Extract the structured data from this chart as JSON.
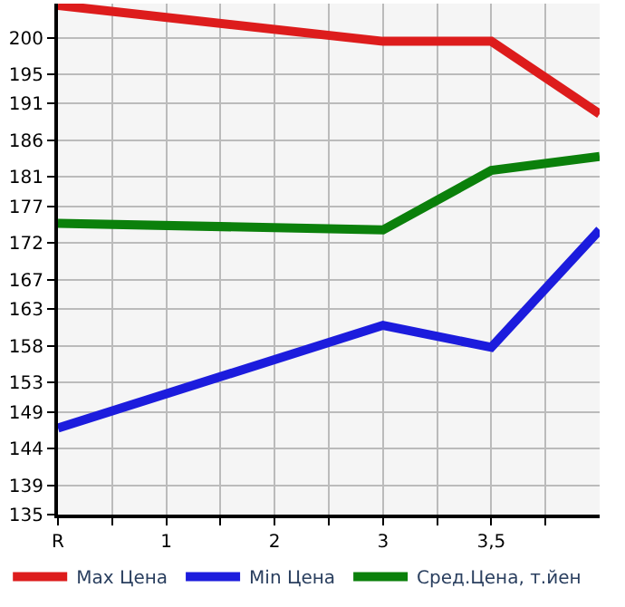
{
  "chart_data": {
    "type": "line",
    "categories": [
      "R",
      "1",
      "2",
      "3",
      "3,5",
      null
    ],
    "series": [
      {
        "name": "Max Цена",
        "color": "#dd1c1c",
        "values": [
          204.4,
          null,
          null,
          199.5,
          199.5,
          189.6
        ]
      },
      {
        "name": "Min Цена",
        "color": "#1c1cdd",
        "values": [
          146.8,
          null,
          null,
          160.8,
          157.8,
          173.8
        ]
      },
      {
        "name": "Сред.Цена, т.йен",
        "color": "#0b800b",
        "values": [
          174.7,
          null,
          null,
          173.8,
          181.9,
          183.8
        ]
      }
    ],
    "ylim": [
      135,
      204.64
    ],
    "yticks": [
      135,
      139,
      144,
      149,
      153,
      158,
      163,
      167,
      172,
      177,
      181,
      186,
      191,
      195,
      200
    ],
    "grid": true,
    "legend": "bottom",
    "marker": "none",
    "line_style": "solid"
  }
}
